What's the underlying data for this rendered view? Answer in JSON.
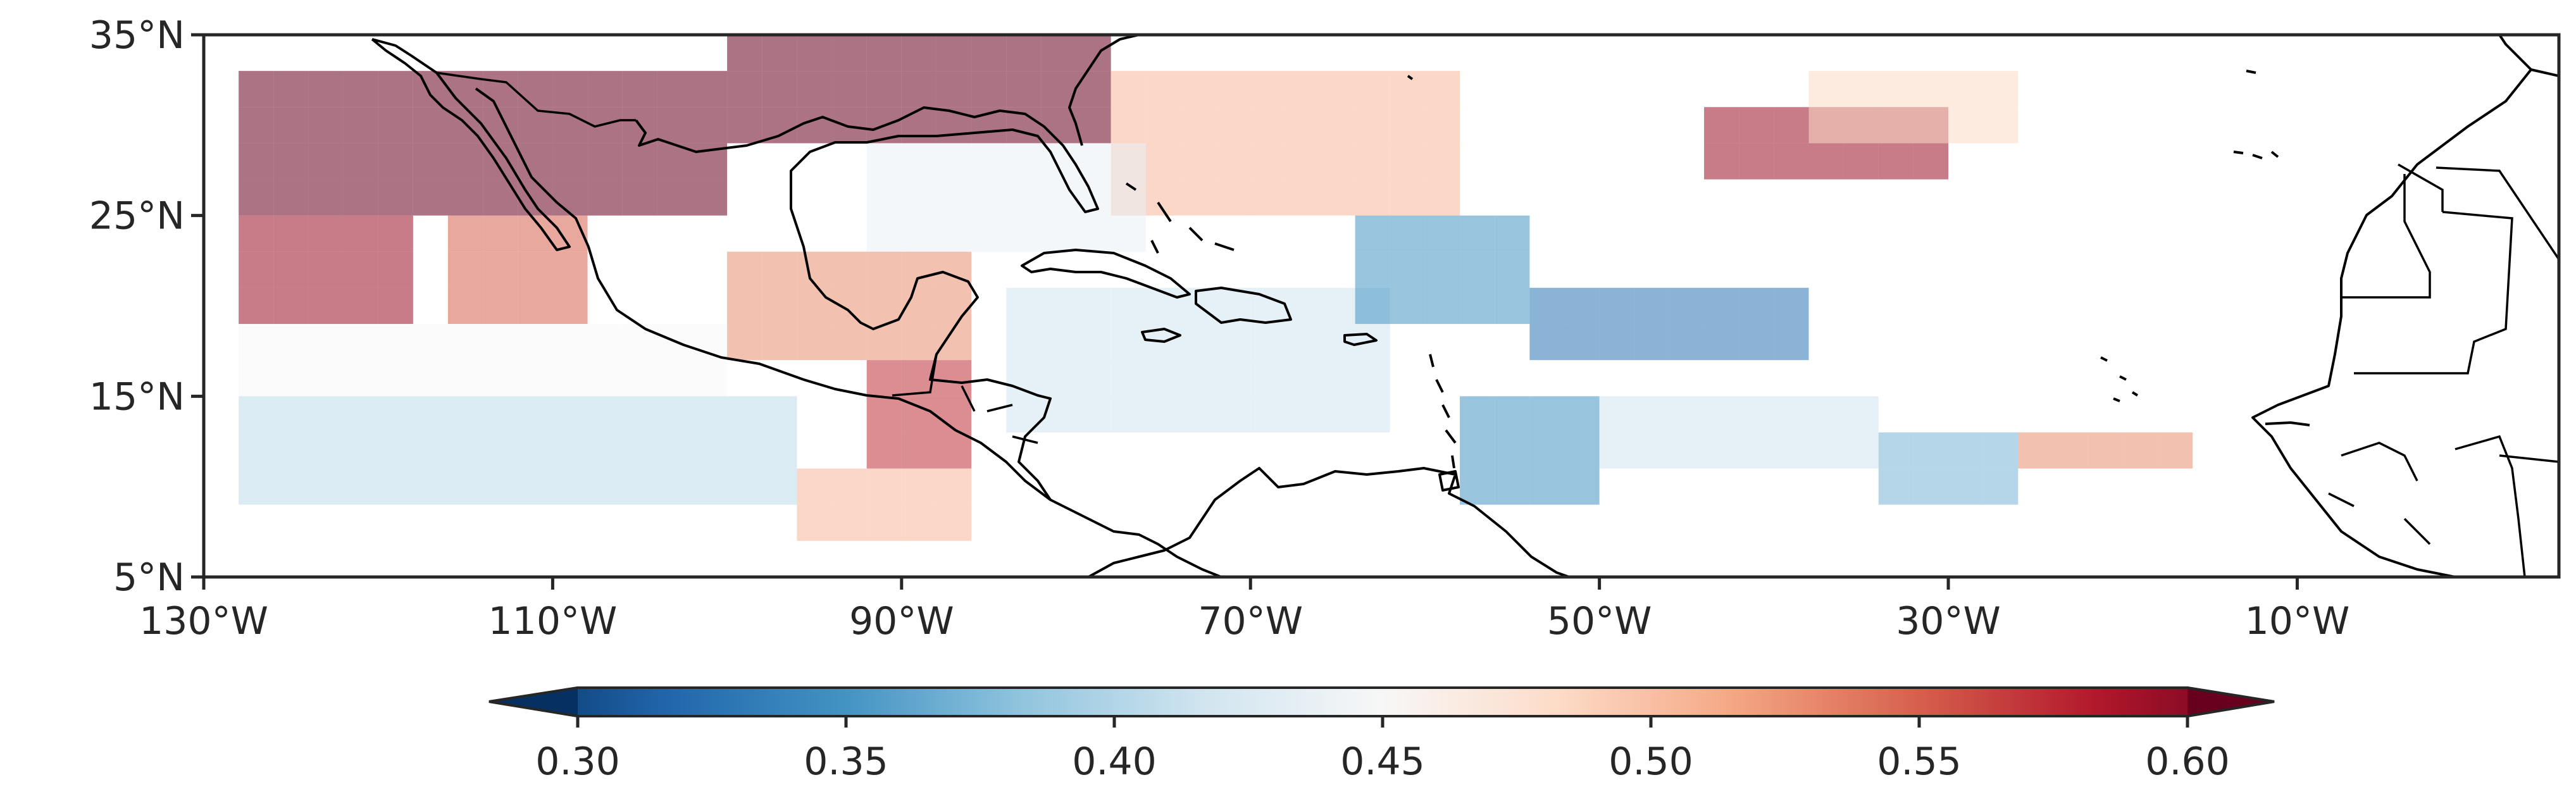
{
  "chart_data": {
    "type": "heatmap",
    "title": "",
    "x_axis": {
      "range": [
        -130,
        5
      ],
      "ticks": [
        -130,
        -110,
        -90,
        -70,
        -50,
        -30,
        -10
      ],
      "tick_labels": [
        "130°W",
        "110°W",
        "90°W",
        "70°W",
        "50°W",
        "30°W",
        "10°W"
      ]
    },
    "y_axis": {
      "range": [
        5,
        35
      ],
      "ticks": [
        5,
        15,
        25,
        35
      ],
      "tick_labels": [
        "5°N",
        "15°N",
        "25°N",
        "35°N"
      ]
    },
    "grid": false,
    "cell_size_deg": 2,
    "colorbar": {
      "colormap": "RdBu_r",
      "placement": "bottom",
      "range": [
        0.3,
        0.6
      ],
      "ticks": [
        0.3,
        0.35,
        0.4,
        0.45,
        0.5,
        0.55,
        0.6
      ],
      "tick_labels": [
        "0.30",
        "0.35",
        "0.40",
        "0.45",
        "0.50",
        "0.55",
        "0.60"
      ],
      "extend": "both"
    },
    "colors": {
      "coastline": "#000000",
      "frame": "#262626",
      "low_end": "#053061",
      "high_end": "#67001f"
    },
    "regions": [
      {
        "lon": [
          -128,
          -100
        ],
        "lat": [
          25,
          33
        ],
        "value": 0.62
      },
      {
        "lon": [
          -128,
          -118
        ],
        "lat": [
          19,
          25
        ],
        "value": 0.58
      },
      {
        "lon": [
          -116,
          -108
        ],
        "lat": [
          19,
          25
        ],
        "value": 0.54
      },
      {
        "lon": [
          -100,
          -78
        ],
        "lat": [
          29,
          35
        ],
        "value": 0.62
      },
      {
        "lon": [
          -78,
          -58
        ],
        "lat": [
          25,
          33
        ],
        "value": 0.5
      },
      {
        "lon": [
          -128,
          -100
        ],
        "lat": [
          15,
          19
        ],
        "value": 0.45
      },
      {
        "lon": [
          -100,
          -86
        ],
        "lat": [
          17,
          23
        ],
        "value": 0.52
      },
      {
        "lon": [
          -92,
          -86
        ],
        "lat": [
          11,
          17
        ],
        "value": 0.56
      },
      {
        "lon": [
          -128,
          -96
        ],
        "lat": [
          9,
          15
        ],
        "value": 0.41
      },
      {
        "lon": [
          -96,
          -86
        ],
        "lat": [
          7,
          11
        ],
        "value": 0.5
      },
      {
        "lon": [
          -92,
          -76
        ],
        "lat": [
          23,
          29
        ],
        "value": 0.44
      },
      {
        "lon": [
          -84,
          -62
        ],
        "lat": [
          13,
          21
        ],
        "value": 0.42
      },
      {
        "lon": [
          -64,
          -54
        ],
        "lat": [
          19,
          25
        ],
        "value": 0.36
      },
      {
        "lon": [
          -54,
          -38
        ],
        "lat": [
          17,
          21
        ],
        "value": 0.34
      },
      {
        "lon": [
          -58,
          -50
        ],
        "lat": [
          9,
          15
        ],
        "value": 0.36
      },
      {
        "lon": [
          -50,
          -34
        ],
        "lat": [
          11,
          15
        ],
        "value": 0.42
      },
      {
        "lon": [
          -34,
          -26
        ],
        "lat": [
          9,
          13
        ],
        "value": 0.38
      },
      {
        "lon": [
          -26,
          -16
        ],
        "lat": [
          11,
          13
        ],
        "value": 0.52
      },
      {
        "lon": [
          -44,
          -30
        ],
        "lat": [
          27,
          31
        ],
        "value": 0.58
      },
      {
        "lon": [
          -38,
          -26
        ],
        "lat": [
          29,
          33
        ],
        "value": 0.48
      }
    ]
  }
}
